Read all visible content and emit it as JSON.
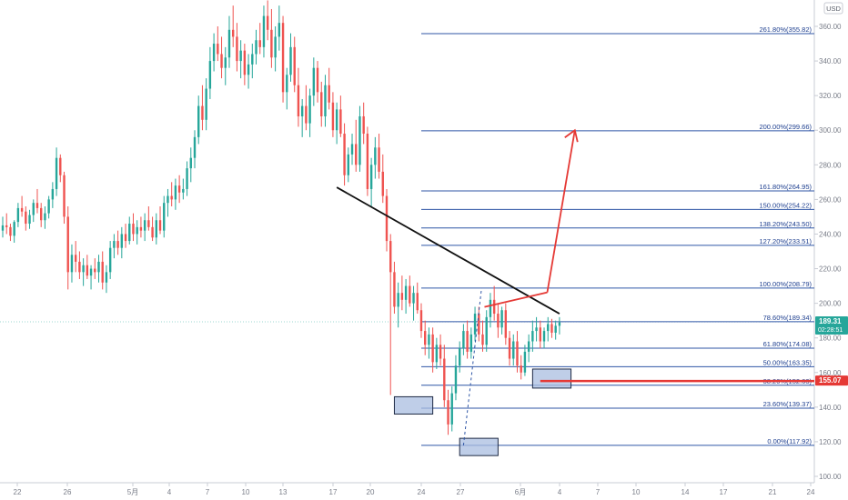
{
  "chart_data": {
    "type": "candlestick",
    "currency_label": "USD",
    "y_axis": {
      "min": 95,
      "max": 375,
      "ticks": [
        100,
        120,
        140,
        160,
        180,
        200,
        220,
        240,
        260,
        280,
        300,
        320,
        340,
        360
      ]
    },
    "x_tick_labels": [
      "22",
      "26",
      "5月",
      "4",
      "7",
      "10",
      "13",
      "17",
      "20",
      "24",
      "27",
      "6月",
      "4",
      "7",
      "10",
      "14",
      "17",
      "21",
      "24"
    ],
    "candles": [
      [
        242,
        250,
        238,
        245
      ],
      [
        245,
        252,
        240,
        244
      ],
      [
        244,
        246,
        236,
        239
      ],
      [
        239,
        248,
        235,
        247
      ],
      [
        247,
        258,
        244,
        255
      ],
      [
        255,
        262,
        250,
        253
      ],
      [
        253,
        256,
        242,
        246
      ],
      [
        246,
        254,
        243,
        251
      ],
      [
        251,
        260,
        247,
        258
      ],
      [
        258,
        266,
        252,
        255
      ],
      [
        255,
        258,
        244,
        248
      ],
      [
        248,
        256,
        243,
        252
      ],
      [
        252,
        262,
        249,
        260
      ],
      [
        260,
        270,
        255,
        266
      ],
      [
        266,
        290,
        262,
        284
      ],
      [
        284,
        286,
        270,
        274
      ],
      [
        274,
        276,
        246,
        250
      ],
      [
        250,
        256,
        208,
        218
      ],
      [
        218,
        234,
        212,
        228
      ],
      [
        228,
        236,
        218,
        224
      ],
      [
        224,
        230,
        214,
        218
      ],
      [
        218,
        226,
        210,
        222
      ],
      [
        222,
        228,
        214,
        216
      ],
      [
        216,
        222,
        208,
        220
      ],
      [
        220,
        226,
        214,
        218
      ],
      [
        218,
        228,
        212,
        224
      ],
      [
        224,
        230,
        208,
        212
      ],
      [
        212,
        222,
        206,
        218
      ],
      [
        218,
        236,
        214,
        232
      ],
      [
        232,
        240,
        226,
        236
      ],
      [
        236,
        242,
        228,
        232
      ],
      [
        232,
        244,
        226,
        240
      ],
      [
        240,
        246,
        232,
        236
      ],
      [
        236,
        250,
        234,
        246
      ],
      [
        246,
        252,
        236,
        240
      ],
      [
        240,
        248,
        234,
        244
      ],
      [
        244,
        250,
        238,
        242
      ],
      [
        242,
        252,
        236,
        248
      ],
      [
        248,
        256,
        242,
        244
      ],
      [
        244,
        250,
        236,
        238
      ],
      [
        238,
        252,
        234,
        248
      ],
      [
        248,
        256,
        240,
        242
      ],
      [
        242,
        262,
        238,
        258
      ],
      [
        258,
        266,
        250,
        262
      ],
      [
        262,
        270,
        256,
        260
      ],
      [
        260,
        272,
        254,
        268
      ],
      [
        268,
        274,
        258,
        264
      ],
      [
        264,
        272,
        260,
        266
      ],
      [
        266,
        282,
        262,
        278
      ],
      [
        278,
        290,
        270,
        284
      ],
      [
        284,
        300,
        278,
        296
      ],
      [
        296,
        320,
        292,
        314
      ],
      [
        314,
        326,
        300,
        306
      ],
      [
        306,
        330,
        300,
        324
      ],
      [
        324,
        348,
        318,
        340
      ],
      [
        340,
        356,
        334,
        350
      ],
      [
        350,
        360,
        340,
        344
      ],
      [
        344,
        354,
        330,
        336
      ],
      [
        336,
        348,
        326,
        342
      ],
      [
        342,
        366,
        336,
        358
      ],
      [
        358,
        372,
        348,
        354
      ],
      [
        354,
        362,
        334,
        340
      ],
      [
        340,
        352,
        330,
        346
      ],
      [
        346,
        350,
        326,
        332
      ],
      [
        332,
        344,
        324,
        338
      ],
      [
        338,
        350,
        330,
        344
      ],
      [
        344,
        358,
        338,
        352
      ],
      [
        352,
        362,
        344,
        348
      ],
      [
        348,
        372,
        342,
        366
      ],
      [
        366,
        375,
        352,
        358
      ],
      [
        358,
        370,
        336,
        342
      ],
      [
        342,
        360,
        334,
        354
      ],
      [
        354,
        372,
        346,
        362
      ],
      [
        362,
        366,
        316,
        322
      ],
      [
        322,
        336,
        312,
        332
      ],
      [
        332,
        356,
        328,
        348
      ],
      [
        348,
        354,
        322,
        326
      ],
      [
        326,
        336,
        302,
        308
      ],
      [
        308,
        318,
        296,
        314
      ],
      [
        314,
        326,
        300,
        304
      ],
      [
        304,
        324,
        296,
        320
      ],
      [
        320,
        342,
        314,
        336
      ],
      [
        336,
        340,
        316,
        322
      ],
      [
        322,
        328,
        302,
        308
      ],
      [
        308,
        332,
        302,
        326
      ],
      [
        326,
        336,
        312,
        316
      ],
      [
        316,
        322,
        296,
        300
      ],
      [
        300,
        316,
        292,
        312
      ],
      [
        312,
        320,
        296,
        298
      ],
      [
        298,
        304,
        268,
        274
      ],
      [
        274,
        290,
        270,
        286
      ],
      [
        286,
        298,
        280,
        292
      ],
      [
        292,
        306,
        276,
        280
      ],
      [
        280,
        314,
        276,
        308
      ],
      [
        308,
        316,
        292,
        298
      ],
      [
        298,
        302,
        262,
        266
      ],
      [
        266,
        284,
        256,
        280
      ],
      [
        280,
        296,
        272,
        290
      ],
      [
        290,
        298,
        272,
        276
      ],
      [
        276,
        286,
        258,
        262
      ],
      [
        262,
        266,
        230,
        236
      ],
      [
        236,
        240,
        147,
        218
      ],
      [
        218,
        224,
        194,
        198
      ],
      [
        198,
        212,
        186,
        206
      ],
      [
        206,
        216,
        196,
        202
      ],
      [
        202,
        214,
        194,
        210
      ],
      [
        210,
        216,
        198,
        200
      ],
      [
        200,
        210,
        190,
        206
      ],
      [
        206,
        212,
        194,
        196
      ],
      [
        196,
        200,
        180,
        184
      ],
      [
        184,
        190,
        170,
        176
      ],
      [
        176,
        186,
        168,
        182
      ],
      [
        182,
        186,
        160,
        166
      ],
      [
        166,
        180,
        162,
        176
      ],
      [
        176,
        182,
        164,
        168
      ],
      [
        168,
        176,
        140,
        144
      ],
      [
        144,
        150,
        124,
        130
      ],
      [
        130,
        152,
        126,
        148
      ],
      [
        148,
        170,
        144,
        164
      ],
      [
        164,
        178,
        160,
        174
      ],
      [
        174,
        188,
        170,
        184
      ],
      [
        184,
        190,
        168,
        172
      ],
      [
        172,
        186,
        168,
        182
      ],
      [
        182,
        198,
        178,
        194
      ],
      [
        194,
        198,
        178,
        182
      ],
      [
        182,
        190,
        172,
        176
      ],
      [
        176,
        196,
        172,
        192
      ],
      [
        192,
        206,
        186,
        202
      ],
      [
        202,
        210,
        190,
        194
      ],
      [
        194,
        200,
        180,
        186
      ],
      [
        186,
        198,
        182,
        196
      ],
      [
        196,
        200,
        176,
        180
      ],
      [
        180,
        184,
        164,
        168
      ],
      [
        168,
        182,
        164,
        178
      ],
      [
        178,
        184,
        160,
        164
      ],
      [
        164,
        170,
        156,
        160
      ],
      [
        160,
        176,
        158,
        172
      ],
      [
        172,
        182,
        166,
        178
      ],
      [
        178,
        190,
        172,
        184
      ],
      [
        184,
        192,
        178,
        186
      ],
      [
        186,
        190,
        174,
        178
      ],
      [
        178,
        186,
        174,
        184
      ],
      [
        184,
        192,
        178,
        188
      ],
      [
        188,
        191,
        180,
        183
      ],
      [
        183,
        190,
        179,
        187
      ],
      [
        187,
        192,
        182,
        189
      ]
    ],
    "trendline": {
      "from": [
        103,
        235
      ],
      "to": [
        145,
        194
      ]
    },
    "projection_arrow": {
      "from": [
        134,
        200
      ],
      "to": [
        149,
        300
      ]
    },
    "fib_retracement": {
      "levels": [
        {
          "ratio": 0.0,
          "price": 117.92,
          "label": "0.00%(117.92)"
        },
        {
          "ratio": 0.236,
          "price": 139.37,
          "label": "23.60%(139.37)"
        },
        {
          "ratio": 0.382,
          "price": 152.63,
          "label": "38.20%(152.63)"
        },
        {
          "ratio": 0.5,
          "price": 163.35,
          "label": "50.00%(163.35)"
        },
        {
          "ratio": 0.618,
          "price": 174.08,
          "label": "61.80%(174.08)"
        },
        {
          "ratio": 0.786,
          "price": 189.34,
          "label": "78.60%(189.34)"
        },
        {
          "ratio": 1.0,
          "price": 208.79,
          "label": "100.00%(208.79)"
        },
        {
          "ratio": 1.272,
          "price": 233.51,
          "label": "127.20%(233.51)"
        },
        {
          "ratio": 1.382,
          "price": 243.5,
          "label": "138.20%(243.50)"
        },
        {
          "ratio": 1.5,
          "price": 254.22,
          "label": "150.00%(254.22)"
        },
        {
          "ratio": 1.618,
          "price": 264.95,
          "label": "161.80%(264.95)"
        },
        {
          "ratio": 2.0,
          "price": 299.66,
          "label": "200.00%(299.66)"
        },
        {
          "ratio": 2.618,
          "price": 355.82,
          "label": "261.80%(355.82)"
        }
      ]
    },
    "highlight_boxes": [
      {
        "x_from": 102,
        "x_to": 112,
        "price_low": 136,
        "price_high": 146
      },
      {
        "x_from": 119,
        "x_to": 129,
        "price_low": 112,
        "price_high": 122
      },
      {
        "x_from": 138,
        "x_to": 148,
        "price_low": 151,
        "price_high": 162
      }
    ],
    "support_line": {
      "x_from": 140,
      "price": 155.07
    },
    "price_tags": [
      {
        "price": 189.31,
        "line1": "189.31",
        "line2": "02:28:51",
        "color": "#26a69a"
      },
      {
        "price": 155.07,
        "line1": "155.07",
        "line2": "",
        "color": "#e53935"
      }
    ],
    "colors": {
      "up": "#26a69a",
      "down": "#ef5350",
      "fib": "#2f56a6",
      "trend": "#111111",
      "arrow": "#e53935",
      "box_fill": "#a9bde0",
      "box_stroke": "#1e2a44"
    }
  }
}
